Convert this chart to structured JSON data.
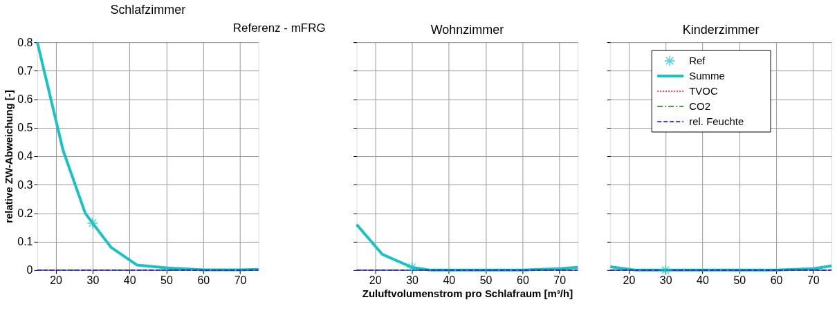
{
  "chart_data": [
    {
      "type": "line",
      "title": "Schlafzimmer",
      "ylabel": "relative ZW-Abweichung [-]",
      "annotations": [
        "Referenz - mFRG"
      ],
      "xlim": [
        15,
        75
      ],
      "ylim": [
        0,
        0.8
      ],
      "xticks": [
        20,
        30,
        40,
        50,
        60,
        70
      ],
      "yticks": [
        0,
        0.1,
        0.2,
        0.3,
        0.4,
        0.5,
        0.6,
        0.7,
        0.8
      ],
      "grid": true,
      "legend": false,
      "series": [
        {
          "type": "scatter",
          "marker": "cross",
          "color": "#19c3c3",
          "x": [
            30
          ],
          "values": [
            0.165
          ]
        },
        {
          "color": "#19c3c3",
          "line_style": "solid",
          "x": [
            15,
            22,
            28,
            30,
            35,
            42,
            50,
            60,
            70,
            75
          ],
          "values": [
            0.8,
            0.42,
            0.2,
            0.165,
            0.08,
            0.018,
            0.008,
            0.001,
            0.001,
            0.003
          ]
        },
        {
          "color": "#ff0000",
          "line_style": "dotted",
          "x": [
            15,
            75
          ],
          "values": [
            0,
            0
          ]
        },
        {
          "color": "#008000",
          "line_style": "dashdot",
          "x": [
            15,
            75
          ],
          "values": [
            0,
            0
          ]
        },
        {
          "color": "#0000ff",
          "line_style": "dashed",
          "x": [
            15,
            75
          ],
          "values": [
            0,
            0
          ]
        }
      ]
    },
    {
      "type": "line",
      "title": "Wohnzimmer",
      "xlabel": "Zuluftvolumenstrom pro Schlafraum [m³/h]",
      "xlim": [
        15,
        75
      ],
      "ylim": [
        0,
        0.8
      ],
      "xticks": [
        20,
        30,
        40,
        50,
        60,
        70
      ],
      "yticks": [
        0,
        0.1,
        0.2,
        0.3,
        0.4,
        0.5,
        0.6,
        0.7,
        0.8
      ],
      "grid": true,
      "legend": false,
      "tick_labels": "x",
      "series": [
        {
          "type": "scatter",
          "marker": "cross",
          "color": "#19c3c3",
          "x": [
            30
          ],
          "values": [
            0.01
          ]
        },
        {
          "color": "#19c3c3",
          "line_style": "solid",
          "x": [
            15,
            22,
            30,
            35,
            50,
            60,
            70,
            75
          ],
          "values": [
            0.16,
            0.055,
            0.01,
            0.0,
            0.0,
            0.0,
            0.005,
            0.01
          ]
        },
        {
          "color": "#ff0000",
          "line_style": "dotted",
          "x": [
            15,
            75
          ],
          "values": [
            0,
            0
          ]
        },
        {
          "color": "#008000",
          "line_style": "dashdot",
          "x": [
            15,
            75
          ],
          "values": [
            0,
            0
          ]
        },
        {
          "color": "#0000ff",
          "line_style": "dashed",
          "x": [
            15,
            75
          ],
          "values": [
            0,
            0
          ]
        }
      ]
    },
    {
      "type": "line",
      "title": "Kinderzimmer",
      "xlim": [
        15,
        75
      ],
      "ylim": [
        0,
        0.8
      ],
      "xticks": [
        20,
        30,
        40,
        50,
        60,
        70
      ],
      "yticks": [
        0,
        0.1,
        0.2,
        0.3,
        0.4,
        0.5,
        0.6,
        0.7,
        0.8
      ],
      "grid": true,
      "legend": "top left",
      "tick_labels": "x",
      "series": [
        {
          "name": "Ref",
          "type": "scatter",
          "marker": "cross",
          "color": "#19c3c3",
          "x": [
            30
          ],
          "values": [
            0
          ]
        },
        {
          "name": "Summe",
          "color": "#19c3c3",
          "line_style": "solid",
          "x": [
            15,
            22,
            30,
            50,
            60,
            70,
            75
          ],
          "values": [
            0.012,
            0.0,
            0.0,
            0.0,
            0.0,
            0.005,
            0.015
          ]
        },
        {
          "name": "TVOC",
          "color": "#ff0000",
          "line_style": "dotted",
          "x": [
            15,
            75
          ],
          "values": [
            0,
            0
          ]
        },
        {
          "name": "CO2",
          "color": "#008000",
          "line_style": "dashdot",
          "x": [
            15,
            75
          ],
          "values": [
            0,
            0
          ]
        },
        {
          "name": "rel. Feuchte",
          "color": "#0000ff",
          "line_style": "dashed",
          "x": [
            15,
            75
          ],
          "values": [
            0,
            0
          ]
        }
      ]
    }
  ]
}
